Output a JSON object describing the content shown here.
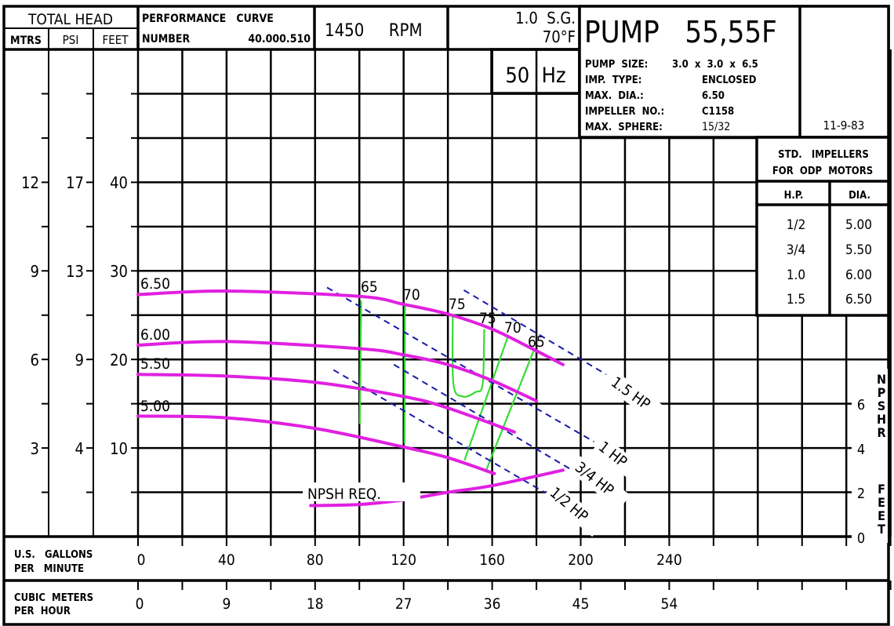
{
  "header": {
    "total_head": "TOTAL HEAD",
    "col_mtrs": "MTRS",
    "col_psi": "PSI",
    "col_feet": "FEET",
    "perf_curve": "PERFORMANCE   CURVE",
    "number_label": "NUMBER",
    "number_value": "40.000.510",
    "rpm": "1450     RPM",
    "sg": "1.0  S.G.",
    "temp": "70°F",
    "hz": "50  Hz"
  },
  "pump_info": {
    "title": "PUMP   55,55F",
    "size_label": "PUMP  SIZE:",
    "size_value": "3.0  x  3.0  x  6.5",
    "rows": [
      {
        "label": "IMP.  TYPE:",
        "value": "ENCLOSED"
      },
      {
        "label": "MAX.  DIA.:",
        "value": "6.50"
      },
      {
        "label": "IMPELLER  NO.:",
        "value": "C1158"
      },
      {
        "label": "MAX.  SPHERE:",
        "value": "15/32"
      }
    ],
    "date": "11-9-83"
  },
  "impeller_table": {
    "title_line1": "STD.   IMPELLERS",
    "title_line2": "FOR  ODP  MOTORS",
    "col_hp": "H.P.",
    "col_dia": "DIA.",
    "rows": [
      {
        "hp": "1/2",
        "dia": "5.00"
      },
      {
        "hp": "3/4",
        "dia": "5.50"
      },
      {
        "hp": "1.0",
        "dia": "6.00"
      },
      {
        "hp": "1.5",
        "dia": "6.50"
      }
    ]
  },
  "axes": {
    "mtrs_ticks": [
      "12",
      "9",
      "6",
      "3"
    ],
    "psi_ticks": [
      "17",
      "13",
      "9",
      "4"
    ],
    "feet_ticks": [
      "40",
      "30",
      "20",
      "10"
    ],
    "gpm_label_1": "U.S.   GALLONS",
    "gpm_label_2": "PER   MINUTE",
    "gpm_ticks": [
      "0",
      "40",
      "80",
      "120",
      "160",
      "200",
      "240"
    ],
    "m3h_label_1": "CUBIC  METERS",
    "m3h_label_2": "PER  HOUR",
    "m3h_ticks": [
      "0",
      "9",
      "18",
      "27",
      "36",
      "45",
      "54"
    ],
    "npsh_ticks": [
      "6",
      "4",
      "2",
      "0"
    ],
    "npsh_label": "NPSHR",
    "npsh_unit": "FEET"
  },
  "chart_data": {
    "type": "line",
    "xlabel": "U.S. GALLONS PER MINUTE",
    "ylabel": "TOTAL HEAD (FEET)",
    "xlim": [
      0,
      340
    ],
    "ylim": [
      0,
      55
    ],
    "grid": true,
    "colors": {
      "head": "#e020e0",
      "efficiency": "#33dd33",
      "hp": "#1a1aa8",
      "grid": "#000000"
    },
    "head_curves": [
      {
        "name": "6.50",
        "points": [
          [
            0,
            27.3
          ],
          [
            40,
            27.7
          ],
          [
            100,
            27.1
          ],
          [
            120,
            26.2
          ],
          [
            140,
            25.1
          ],
          [
            160,
            23.4
          ],
          [
            178,
            21.2
          ],
          [
            192,
            19.4
          ]
        ]
      },
      {
        "name": "6.00",
        "points": [
          [
            0,
            21.6
          ],
          [
            40,
            22.0
          ],
          [
            100,
            21.2
          ],
          [
            120,
            20.5
          ],
          [
            140,
            19.4
          ],
          [
            160,
            17.6
          ],
          [
            180,
            15.3
          ]
        ]
      },
      {
        "name": "5.50",
        "points": [
          [
            0,
            18.3
          ],
          [
            40,
            18.1
          ],
          [
            80,
            17.4
          ],
          [
            120,
            15.8
          ],
          [
            140,
            14.5
          ],
          [
            170,
            11.8
          ]
        ]
      },
      {
        "name": "5.00",
        "points": [
          [
            0,
            13.6
          ],
          [
            40,
            13.4
          ],
          [
            80,
            12.2
          ],
          [
            120,
            10.1
          ],
          [
            140,
            8.9
          ],
          [
            161,
            7.1
          ]
        ]
      }
    ],
    "npsh_curve": {
      "name": "NPSH  REQ.",
      "points": [
        [
          78,
          1.4
        ],
        [
          100,
          1.45
        ],
        [
          120,
          1.66
        ],
        [
          140,
          2.0
        ],
        [
          160,
          2.3
        ],
        [
          192,
          3.0
        ]
      ]
    },
    "efficiency_curves": [
      {
        "name": "65",
        "points": [
          [
            100.8,
            26.6
          ],
          [
            100.5,
            20
          ],
          [
            100.2,
            12.7
          ]
        ]
      },
      {
        "name": "70",
        "points": [
          [
            120.6,
            26.2
          ],
          [
            120.5,
            18
          ],
          [
            120.4,
            10.5
          ]
        ]
      },
      {
        "name": "75",
        "points": [
          [
            142.2,
            25.1
          ],
          [
            142.5,
            17.2
          ],
          [
            146.8,
            15.8
          ],
          [
            152.5,
            16.3
          ],
          [
            155.7,
            17.2
          ],
          [
            156.4,
            23.4
          ]
        ]
      },
      {
        "name": "75",
        "points": []
      },
      {
        "name": "70",
        "points": [
          [
            167,
            22.5
          ],
          [
            147.5,
            8.6
          ]
        ]
      },
      {
        "name": "65",
        "points": [
          [
            178.8,
            21.0
          ],
          [
            157.5,
            7.6
          ]
        ]
      }
    ],
    "hp_lines": [
      {
        "name": "1.5  HP",
        "points": [
          [
            147.2,
            27.8
          ],
          [
            211.5,
            18.3
          ]
        ]
      },
      {
        "name": "1  HP",
        "points": [
          [
            85.4,
            28.1
          ],
          [
            206,
            10.7
          ]
        ]
      },
      {
        "name": "3/4  HP",
        "points": [
          [
            115.6,
            19.4
          ],
          [
            195.4,
            7.6
          ]
        ]
      },
      {
        "name": "1/2  HP",
        "points": [
          [
            88.3,
            18.8
          ],
          [
            185,
            4.8
          ]
        ]
      }
    ]
  }
}
